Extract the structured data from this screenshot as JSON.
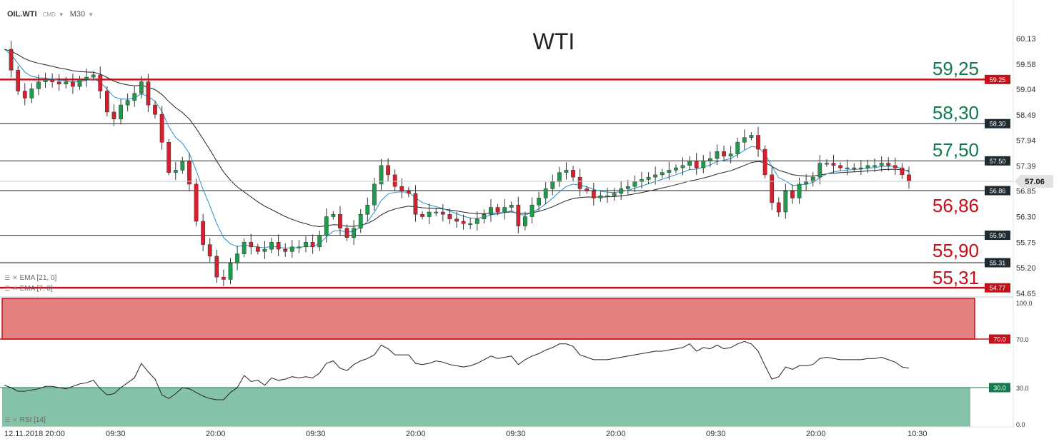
{
  "toolbar": {
    "symbol": "OIL.WTI",
    "symbol_sub": "CMD",
    "timeframe": "M30",
    "dropdown_glyph": "▼"
  },
  "title": "WTI",
  "indicator_labels": [
    "EMA [21, 0]",
    "EMA [7, 0]",
    "RSI [14]"
  ],
  "icons": [
    "bars-icon",
    "close-icon"
  ],
  "colors": {
    "bull": "#1e9b4a",
    "bear": "#d6202f",
    "ema_fast": "#2a8fc9",
    "ema_slow": "#222222",
    "resistance_label": "#137a4e",
    "support_label": "#c4101b",
    "overbought_zone": "#e48080",
    "oversold_zone": "#85c3a8"
  },
  "chart_data": [
    {
      "type": "candlestick",
      "title": "WTI",
      "yaxis_ticks": [
        "60.13",
        "59.58",
        "59.04",
        "58.49",
        "57.94",
        "57.39",
        "56.85",
        "56.30",
        "55.75",
        "55.20",
        "54.65"
      ],
      "ylim": [
        54.65,
        60.13
      ],
      "xaxis_ticks": [
        "12.11.2018  20:00",
        "09:30",
        "20:00",
        "09:30",
        "20:00",
        "09:30",
        "20:00",
        "09:30",
        "20:00",
        "10:30"
      ],
      "current_price": "57.06",
      "levels": [
        {
          "value": 59.25,
          "tag": "59.25",
          "label": "59,25",
          "kind": "resistance",
          "style": "thick-red"
        },
        {
          "value": 58.3,
          "tag": "58.30",
          "label": "58,30",
          "kind": "resistance",
          "style": "thin"
        },
        {
          "value": 57.5,
          "tag": "57.50",
          "label": "57,50",
          "kind": "resistance",
          "style": "thin"
        },
        {
          "value": 56.86,
          "tag": "56.86",
          "label": "56,86",
          "kind": "support",
          "style": "thin"
        },
        {
          "value": 55.9,
          "tag": "55.90",
          "label": "55,90",
          "kind": "support",
          "style": "thin"
        },
        {
          "value": 55.31,
          "tag": "55.31",
          "label": "55,31",
          "kind": "support",
          "style": "thin"
        },
        {
          "value": 54.77,
          "tag": "54.77",
          "label": "",
          "kind": "support",
          "style": "thick-red"
        }
      ],
      "close_path": [
        [
          0,
          59.9
        ],
        [
          1,
          59.45
        ],
        [
          2,
          59.0
        ],
        [
          3,
          58.85
        ],
        [
          4,
          59.05
        ],
        [
          5,
          59.2
        ],
        [
          6,
          59.25
        ],
        [
          7,
          59.2
        ],
        [
          8,
          59.15
        ],
        [
          9,
          59.2
        ],
        [
          10,
          59.1
        ],
        [
          11,
          59.25
        ],
        [
          12,
          59.3
        ],
        [
          13,
          59.35
        ],
        [
          14,
          59.0
        ],
        [
          15,
          58.55
        ],
        [
          16,
          58.4
        ],
        [
          17,
          58.7
        ],
        [
          18,
          58.8
        ],
        [
          19,
          58.95
        ],
        [
          20,
          59.2
        ],
        [
          21,
          58.7
        ],
        [
          22,
          58.5
        ],
        [
          23,
          57.9
        ],
        [
          24,
          57.25
        ],
        [
          25,
          57.3
        ],
        [
          26,
          57.5
        ],
        [
          27,
          57.0
        ],
        [
          28,
          56.2
        ],
        [
          29,
          55.7
        ],
        [
          30,
          55.45
        ],
        [
          31,
          55.0
        ],
        [
          32,
          54.95
        ],
        [
          33,
          55.3
        ],
        [
          34,
          55.5
        ],
        [
          35,
          55.75
        ],
        [
          36,
          55.65
        ],
        [
          37,
          55.55
        ],
        [
          38,
          55.6
        ],
        [
          39,
          55.75
        ],
        [
          40,
          55.6
        ],
        [
          41,
          55.55
        ],
        [
          42,
          55.65
        ],
        [
          43,
          55.65
        ],
        [
          44,
          55.75
        ],
        [
          45,
          55.65
        ],
        [
          46,
          55.9
        ],
        [
          47,
          56.3
        ],
        [
          48,
          56.35
        ],
        [
          49,
          56.05
        ],
        [
          50,
          55.85
        ],
        [
          51,
          56.05
        ],
        [
          52,
          56.35
        ],
        [
          53,
          56.55
        ],
        [
          54,
          57.0
        ],
        [
          55,
          57.4
        ],
        [
          56,
          57.2
        ],
        [
          57,
          56.95
        ],
        [
          58,
          56.85
        ],
        [
          59,
          56.8
        ],
        [
          60,
          56.35
        ],
        [
          61,
          56.3
        ],
        [
          62,
          56.4
        ],
        [
          63,
          56.4
        ],
        [
          64,
          56.35
        ],
        [
          65,
          56.25
        ],
        [
          66,
          56.2
        ],
        [
          67,
          56.15
        ],
        [
          68,
          56.15
        ],
        [
          69,
          56.25
        ],
        [
          70,
          56.35
        ],
        [
          71,
          56.5
        ],
        [
          72,
          56.4
        ],
        [
          73,
          56.5
        ],
        [
          74,
          56.55
        ],
        [
          75,
          56.1
        ],
        [
          76,
          56.3
        ],
        [
          77,
          56.55
        ],
        [
          78,
          56.7
        ],
        [
          79,
          56.9
        ],
        [
          80,
          57.05
        ],
        [
          81,
          57.25
        ],
        [
          82,
          57.3
        ],
        [
          83,
          57.15
        ],
        [
          84,
          56.9
        ],
        [
          85,
          56.85
        ],
        [
          86,
          56.7
        ],
        [
          87,
          56.75
        ],
        [
          88,
          56.75
        ],
        [
          89,
          56.8
        ],
        [
          90,
          56.9
        ],
        [
          91,
          56.95
        ],
        [
          92,
          57.05
        ],
        [
          93,
          57.1
        ],
        [
          94,
          57.15
        ],
        [
          95,
          57.2
        ],
        [
          96,
          57.25
        ],
        [
          97,
          57.3
        ],
        [
          98,
          57.35
        ],
        [
          99,
          57.4
        ],
        [
          100,
          57.5
        ],
        [
          101,
          57.35
        ],
        [
          102,
          57.5
        ],
        [
          103,
          57.55
        ],
        [
          104,
          57.7
        ],
        [
          105,
          57.6
        ],
        [
          106,
          57.65
        ],
        [
          107,
          57.9
        ],
        [
          108,
          58.0
        ],
        [
          109,
          58.05
        ],
        [
          110,
          57.75
        ],
        [
          111,
          57.2
        ],
        [
          112,
          56.6
        ],
        [
          113,
          56.4
        ],
        [
          114,
          56.85
        ],
        [
          115,
          56.7
        ],
        [
          116,
          57.0
        ],
        [
          117,
          57.05
        ],
        [
          118,
          57.15
        ],
        [
          119,
          57.45
        ],
        [
          120,
          57.45
        ],
        [
          121,
          57.4
        ],
        [
          122,
          57.35
        ],
        [
          123,
          57.35
        ],
        [
          124,
          57.35
        ],
        [
          125,
          57.35
        ],
        [
          126,
          57.4
        ],
        [
          127,
          57.4
        ],
        [
          128,
          57.45
        ],
        [
          129,
          57.4
        ],
        [
          130,
          57.35
        ],
        [
          131,
          57.2
        ],
        [
          132,
          57.06
        ]
      ],
      "ema_period_fast": 7,
      "ema_period_slow": 21
    },
    {
      "type": "line",
      "title": "RSI [14]",
      "ylim": [
        0,
        100
      ],
      "yaxis_ticks": [
        "100.0",
        "70.0",
        "30.0",
        "0.0"
      ],
      "levels": [
        {
          "value": 70,
          "tag": "70.0"
        },
        {
          "value": 30,
          "tag": "30.0"
        }
      ],
      "values": [
        32,
        30,
        27,
        27,
        28,
        29,
        31,
        31,
        30,
        29,
        31,
        33,
        34,
        36,
        29,
        24,
        25,
        30,
        34,
        38,
        50,
        43,
        37,
        24,
        21,
        25,
        30,
        29,
        26,
        23,
        21,
        20,
        20,
        26,
        30,
        40,
        35,
        36,
        32,
        38,
        36,
        37,
        39,
        38,
        39,
        38,
        42,
        50,
        52,
        46,
        44,
        49,
        52,
        54,
        57,
        65,
        62,
        57,
        57,
        57,
        50,
        49,
        50,
        52,
        51,
        49,
        48,
        47,
        48,
        50,
        53,
        56,
        54,
        55,
        56,
        49,
        53,
        56,
        58,
        61,
        63,
        66,
        66,
        64,
        57,
        55,
        53,
        53,
        53,
        54,
        55,
        56,
        57,
        58,
        59,
        60,
        60,
        61,
        62,
        63,
        66,
        60,
        63,
        62,
        65,
        62,
        63,
        66,
        68,
        66,
        60,
        48,
        37,
        39,
        47,
        45,
        48,
        48,
        49,
        54,
        55,
        54,
        53,
        53,
        53,
        53,
        54,
        54,
        55,
        53,
        51,
        47,
        46
      ]
    }
  ]
}
